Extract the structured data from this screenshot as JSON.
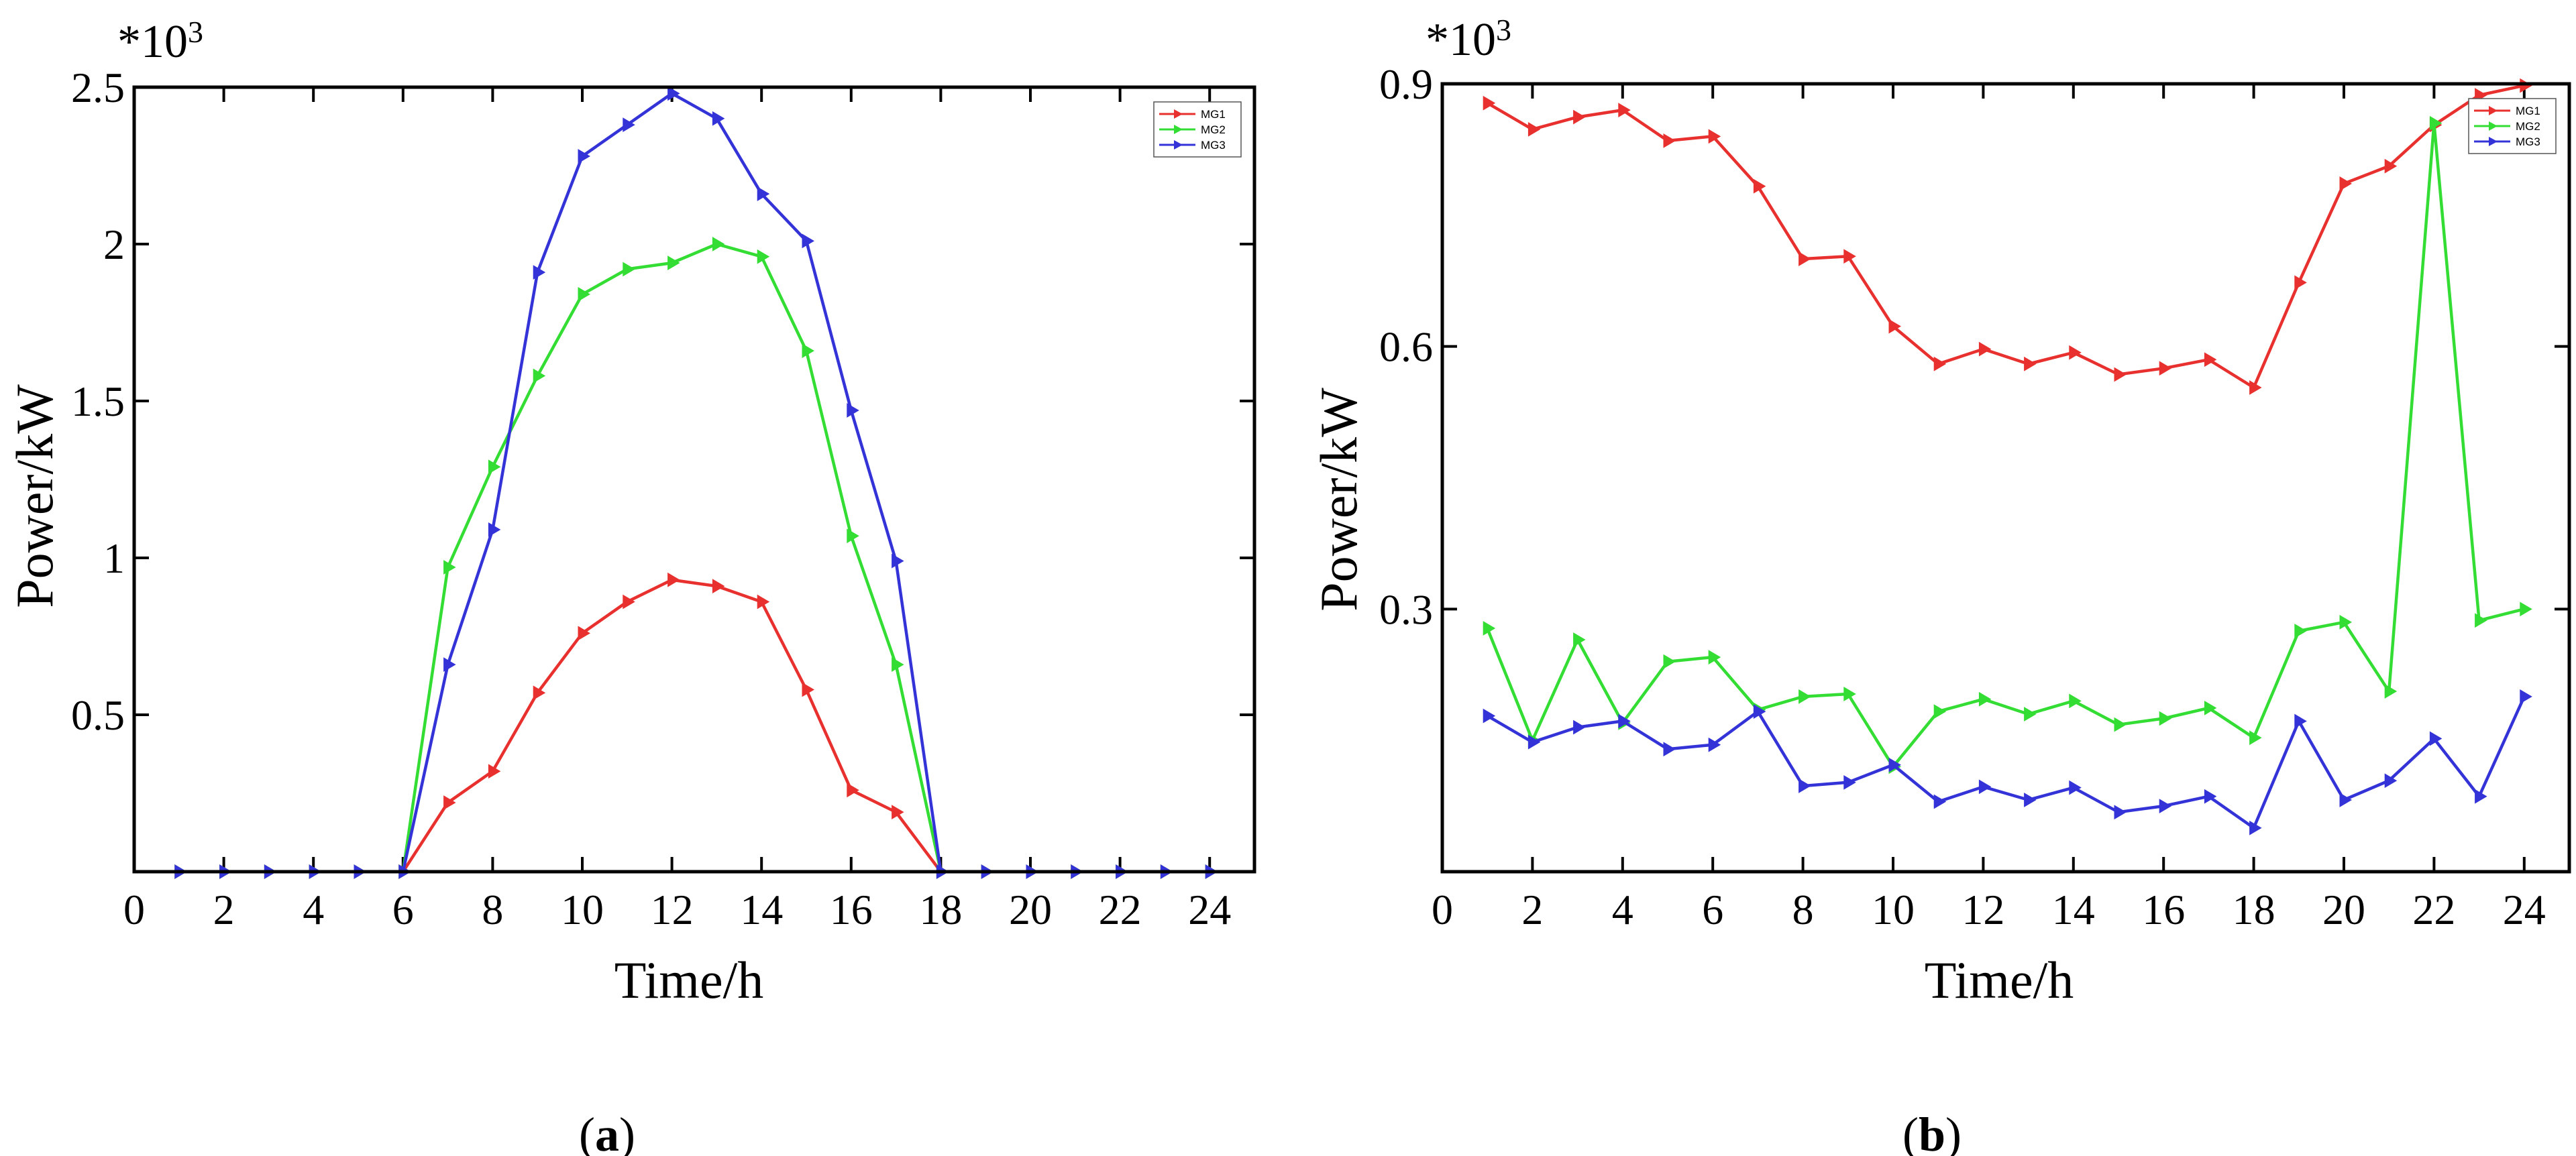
{
  "chart_data": [
    {
      "type": "line",
      "panel": "a",
      "caption_open": "(",
      "caption_letter": "a",
      "caption_close": ")",
      "xlabel": "Time/h",
      "ylabel": "Power/kW",
      "y_multiplier": "*10",
      "y_multiplier_exp": "3",
      "xlim": [
        0,
        25
      ],
      "ylim": [
        0,
        2.5
      ],
      "xticks": [
        0,
        2,
        4,
        6,
        8,
        10,
        12,
        14,
        16,
        18,
        20,
        22,
        24
      ],
      "xtick_labels": [
        "0",
        "2",
        "4",
        "6",
        "8",
        "10",
        "12",
        "14",
        "16",
        "18",
        "20",
        "22",
        "24"
      ],
      "yticks": [
        0.5,
        1,
        1.5,
        2,
        2.5
      ],
      "ytick_labels": [
        "0.5",
        "1",
        "1.5",
        "2",
        "2.5"
      ],
      "x": [
        1,
        2,
        3,
        4,
        5,
        6,
        7,
        8,
        9,
        10,
        11,
        12,
        13,
        14,
        15,
        16,
        17,
        18,
        19,
        20,
        21,
        22,
        23,
        24
      ],
      "legend": {
        "position": "top-right",
        "entries": [
          "MG1",
          "MG2",
          "MG3"
        ]
      },
      "series": [
        {
          "name": "MG1",
          "color": "#e8302e",
          "values": [
            0,
            0,
            0,
            0,
            0,
            0,
            0.22,
            0.32,
            0.57,
            0.76,
            0.86,
            0.93,
            0.91,
            0.86,
            0.58,
            0.26,
            0.19,
            0,
            0,
            0,
            0,
            0,
            0,
            0
          ]
        },
        {
          "name": "MG2",
          "color": "#33dd33",
          "values": [
            0,
            0,
            0,
            0,
            0,
            0,
            0.97,
            1.29,
            1.58,
            1.84,
            1.92,
            1.94,
            2.0,
            1.96,
            1.66,
            1.07,
            0.66,
            0,
            0,
            0,
            0,
            0,
            0,
            0
          ]
        },
        {
          "name": "MG3",
          "color": "#3333d8",
          "values": [
            0,
            0,
            0,
            0,
            0,
            0,
            0.66,
            1.09,
            1.91,
            2.28,
            2.38,
            2.48,
            2.4,
            2.16,
            2.01,
            1.47,
            0.99,
            0,
            0,
            0,
            0,
            0,
            0,
            0
          ]
        }
      ]
    },
    {
      "type": "line",
      "panel": "b",
      "caption_open": "(",
      "caption_letter": "b",
      "caption_close": ")",
      "xlabel": "Time/h",
      "ylabel": "Power/kW",
      "y_multiplier": "*10",
      "y_multiplier_exp": "3",
      "xlim": [
        0,
        25
      ],
      "ylim": [
        0,
        0.9
      ],
      "xticks": [
        0,
        2,
        4,
        6,
        8,
        10,
        12,
        14,
        16,
        18,
        20,
        22,
        24
      ],
      "xtick_labels": [
        "0",
        "2",
        "4",
        "6",
        "8",
        "10",
        "12",
        "14",
        "16",
        "18",
        "20",
        "22",
        "24"
      ],
      "yticks": [
        0.3,
        0.6,
        0.9
      ],
      "ytick_labels": [
        "0.3",
        "0.6",
        "0.9"
      ],
      "x": [
        1,
        2,
        3,
        4,
        5,
        6,
        7,
        8,
        9,
        10,
        11,
        12,
        13,
        14,
        15,
        16,
        17,
        18,
        19,
        20,
        21,
        22,
        23,
        24
      ],
      "legend": {
        "position": "top-right",
        "entries": [
          "MG1",
          "MG2",
          "MG3"
        ]
      },
      "series": [
        {
          "name": "MG1",
          "color": "#e8302e",
          "values": [
            0.878,
            0.848,
            0.862,
            0.87,
            0.835,
            0.84,
            0.783,
            0.7,
            0.703,
            0.623,
            0.58,
            0.597,
            0.58,
            0.593,
            0.568,
            0.575,
            0.585,
            0.553,
            0.673,
            0.786,
            0.806,
            0.853,
            0.887,
            0.898
          ]
        },
        {
          "name": "MG2",
          "color": "#33dd33",
          "values": [
            0.278,
            0.15,
            0.265,
            0.17,
            0.24,
            0.245,
            0.185,
            0.2,
            0.203,
            0.12,
            0.183,
            0.197,
            0.18,
            0.195,
            0.168,
            0.175,
            0.187,
            0.153,
            0.275,
            0.285,
            0.206,
            0.855,
            0.287,
            0.3
          ]
        },
        {
          "name": "MG3",
          "color": "#3333d8",
          "values": [
            0.178,
            0.148,
            0.165,
            0.172,
            0.14,
            0.145,
            0.183,
            0.098,
            0.102,
            0.122,
            0.08,
            0.097,
            0.082,
            0.096,
            0.068,
            0.075,
            0.086,
            0.05,
            0.172,
            0.082,
            0.104,
            0.152,
            0.086,
            0.2
          ]
        }
      ]
    }
  ]
}
